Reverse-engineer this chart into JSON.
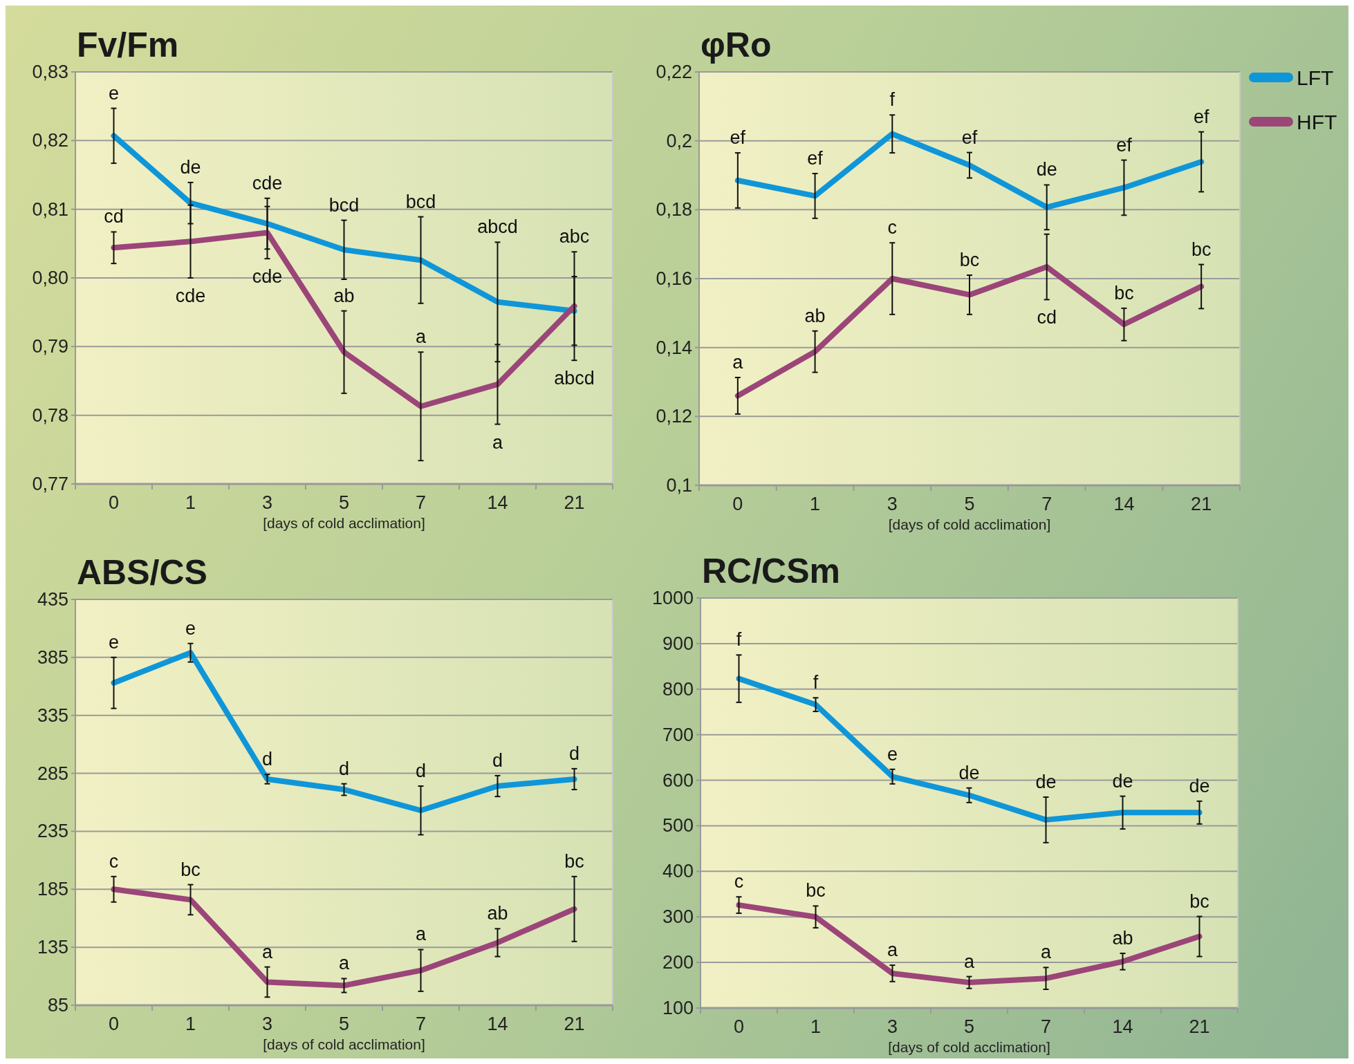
{
  "chart_data": [
    {
      "type": "line",
      "title": "Fv/Fm",
      "xlabel": "[days of cold acclimation]",
      "categories": [
        "0",
        "1",
        "3",
        "5",
        "7",
        "14",
        "21"
      ],
      "ylim": [
        0.77,
        0.83
      ],
      "yticks": [
        {
          "value": 0.77,
          "label": "0,77"
        },
        {
          "value": 0.78,
          "label": "0,78"
        },
        {
          "value": 0.79,
          "label": "0,79"
        },
        {
          "value": 0.8,
          "label": "0,80"
        },
        {
          "value": 0.81,
          "label": "0,81"
        },
        {
          "value": 0.82,
          "label": "0,82"
        },
        {
          "value": 0.83,
          "label": "0,83"
        }
      ],
      "grid": "y",
      "legend": false,
      "series": [
        {
          "color": "#0f96d8",
          "values": [
            0.8207,
            0.8109,
            0.8079,
            0.8041,
            0.8026,
            0.7965,
            0.7952
          ],
          "errors": [
            0.004,
            0.003,
            0.0037,
            0.0043,
            0.0063,
            0.0087,
            0.005
          ]
        },
        {
          "color": "#9b4579",
          "values": [
            0.8044,
            0.8053,
            0.8066,
            0.7892,
            0.7813,
            0.7845,
            0.7959
          ],
          "errors": [
            0.0023,
            0.0053,
            0.0038,
            0.006,
            0.0079,
            0.0058,
            0.0079
          ]
        }
      ],
      "annotations": [
        "e",
        "cd",
        "de",
        "cde",
        "cde",
        "cde",
        "bcd",
        "ab",
        "bcd",
        "a",
        "abcd",
        "a",
        "abc",
        "abcd"
      ]
    },
    {
      "type": "line",
      "title": "φRo",
      "xlabel": "[days of cold acclimation]",
      "categories": [
        "0",
        "1",
        "3",
        "5",
        "7",
        "14",
        "21"
      ],
      "ylim": [
        0.1,
        0.22
      ],
      "yticks": [
        {
          "value": 0.1,
          "label": "0,1"
        },
        {
          "value": 0.12,
          "label": "0,12"
        },
        {
          "value": 0.14,
          "label": "0,14"
        },
        {
          "value": 0.16,
          "label": "0,16"
        },
        {
          "value": 0.18,
          "label": "0,18"
        },
        {
          "value": 0.2,
          "label": "0,2"
        },
        {
          "value": 0.22,
          "label": "0,22"
        }
      ],
      "grid": "y",
      "legend": "top right",
      "series": [
        {
          "name": "LFT",
          "color": "#0f96d8",
          "values": [
            0.1885,
            0.184,
            0.202,
            0.1929,
            0.1807,
            0.1864,
            0.1939
          ],
          "errors": [
            0.008,
            0.0065,
            0.0055,
            0.0037,
            0.0065,
            0.008,
            0.0087
          ]
        },
        {
          "name": "HFT",
          "color": "#9b4579",
          "values": [
            0.126,
            0.1388,
            0.16,
            0.1553,
            0.1634,
            0.1467,
            0.1577
          ],
          "errors": [
            0.0053,
            0.006,
            0.0104,
            0.0057,
            0.0095,
            0.0047,
            0.0064
          ]
        }
      ],
      "annotations": [
        "ef",
        "a",
        "ef",
        "ab",
        "f",
        "c",
        "ef",
        "bc",
        "de",
        "cd",
        "ef",
        "bc",
        "ef",
        "bc"
      ]
    },
    {
      "type": "line",
      "title": "ABS/CS",
      "xlabel": "[days of cold acclimation]",
      "categories": [
        "0",
        "1",
        "3",
        "5",
        "7",
        "14",
        "21"
      ],
      "ylim": [
        85,
        435
      ],
      "yticks": [
        85,
        135,
        185,
        235,
        285,
        335,
        385,
        435
      ],
      "grid": "y",
      "legend": false,
      "series": [
        {
          "color": "#0f96d8",
          "values": [
            363,
            389,
            280,
            271,
            253,
            274,
            280
          ],
          "errors": [
            22,
            8,
            4,
            5,
            21,
            9,
            9
          ]
        },
        {
          "color": "#9b4579",
          "values": [
            185,
            176,
            105,
            102,
            115,
            139,
            168
          ],
          "errors": [
            11,
            13,
            13,
            6,
            18,
            12,
            28
          ]
        }
      ],
      "annotations": [
        "e",
        "c",
        "e",
        "bc",
        "d",
        "a",
        "d",
        "a",
        "d",
        "a",
        "d",
        "ab",
        "d",
        "bc"
      ]
    },
    {
      "type": "line",
      "title": "RC/CSm",
      "xlabel": "[days of cold acclimation]",
      "categories": [
        "0",
        "1",
        "3",
        "5",
        "7",
        "14",
        "21"
      ],
      "ylim": [
        100,
        1000
      ],
      "yticks": [
        100,
        200,
        300,
        400,
        500,
        600,
        700,
        800,
        900,
        1000
      ],
      "grid": "y",
      "legend": false,
      "series": [
        {
          "color": "#0f96d8",
          "values": [
            823,
            766,
            608,
            567,
            513,
            529,
            529
          ],
          "errors": [
            52,
            15,
            16,
            16,
            50,
            36,
            25
          ]
        },
        {
          "color": "#9b4579",
          "values": [
            326,
            300,
            176,
            156,
            165,
            202,
            257
          ],
          "errors": [
            18,
            24,
            18,
            13,
            24,
            18,
            44
          ]
        }
      ],
      "annotations": [
        "f",
        "c",
        "f",
        "bc",
        "e",
        "a",
        "de",
        "a",
        "de",
        "a",
        "de",
        "ab",
        "de",
        "bc"
      ]
    }
  ]
}
